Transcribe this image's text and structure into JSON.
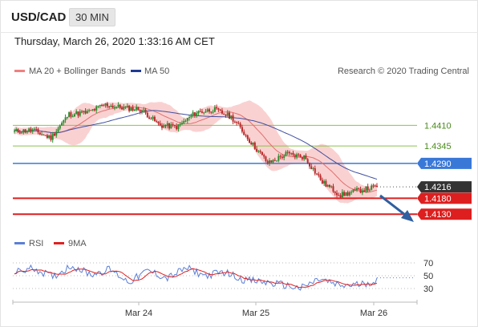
{
  "header": {
    "pair": "USD/CAD",
    "timeframe": "30 MIN",
    "datetime": "Thursday, March 26, 2020 1:33:16 AM CET"
  },
  "legend": {
    "bollinger": "MA 20 + Bollinger Bands",
    "ma50": "MA 50",
    "research": "Research © 2020 Trading Central",
    "rsi": "RSI",
    "ma9": "9MA"
  },
  "colors": {
    "up_candle": "#2e8b2e",
    "down_candle": "#b8292b",
    "bollinger_band": "#f9c9c9",
    "ma20": "#e07070",
    "ma50": "#3f4fa0",
    "support": "#dd1f1f",
    "pivot": "#3a78d8",
    "resistance": "#8bc34a",
    "last_price": "#333333",
    "arrow": "#2f5f9f",
    "rsi": "#5b7fd6",
    "rsi_ma9": "#dd2222"
  },
  "chart_data": [
    {
      "type": "candlestick",
      "title": "USD/CAD",
      "x_tick_labels": [
        "Mar 24",
        "Mar 25",
        "Mar 26"
      ],
      "ylim": [
        1.4085,
        1.4565
      ],
      "close_anchors": [
        1.439,
        1.4395,
        1.437,
        1.4445,
        1.445,
        1.4475,
        1.4465,
        1.446,
        1.441,
        1.4405,
        1.445,
        1.446,
        1.4435,
        1.436,
        1.429,
        1.432,
        1.431,
        1.423,
        1.419,
        1.4205,
        1.4216
      ],
      "horizontal_levels": [
        {
          "value": 1.441,
          "label": "1.4410",
          "kind": "resistance"
        },
        {
          "value": 1.4345,
          "label": "1.4345",
          "kind": "resistance"
        },
        {
          "value": 1.429,
          "label": "1.4290",
          "kind": "pivot"
        },
        {
          "value": 1.4216,
          "label": "1.4216",
          "kind": "last_price"
        },
        {
          "value": 1.418,
          "label": "1.4180",
          "kind": "support"
        },
        {
          "value": 1.413,
          "label": "1.4130",
          "kind": "support"
        }
      ],
      "series": [
        {
          "name": "MA 20 + Bollinger Bands"
        },
        {
          "name": "MA 50"
        }
      ],
      "projection": {
        "direction": "down",
        "target": 1.413
      }
    },
    {
      "type": "line",
      "title": "RSI",
      "ylim": [
        20,
        80
      ],
      "y_ticks": [
        70,
        50,
        30
      ],
      "rsi_anchors": [
        55,
        62,
        48,
        66,
        52,
        60,
        40,
        58,
        46,
        62,
        50,
        56,
        44,
        40,
        36,
        30,
        45,
        34,
        36,
        42
      ],
      "series": [
        {
          "name": "RSI"
        },
        {
          "name": "9MA"
        }
      ]
    }
  ]
}
